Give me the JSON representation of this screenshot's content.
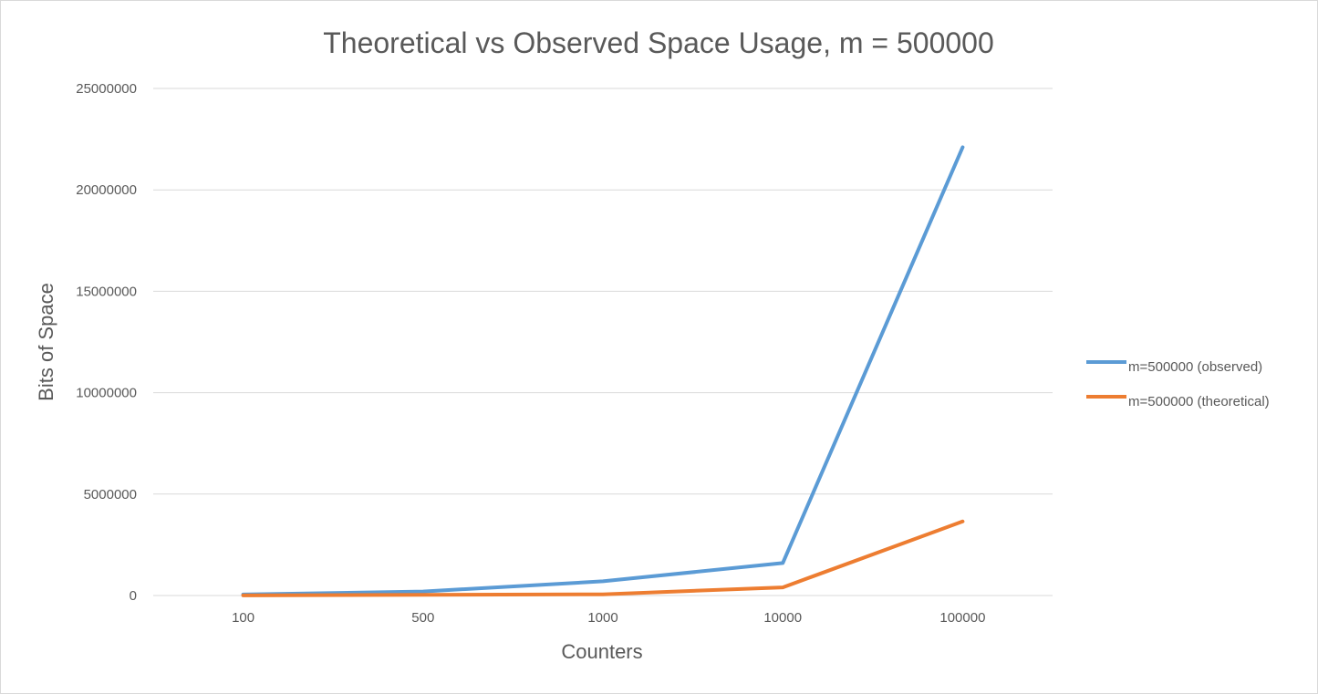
{
  "chart_data": {
    "type": "line",
    "title": "Theoretical vs Observed Space Usage, m = 500000",
    "xlabel": "Counters",
    "ylabel": "Bits of Space",
    "categories": [
      "100",
      "500",
      "1000",
      "10000",
      "100000"
    ],
    "ylim": [
      0,
      25000000
    ],
    "yticks": [
      "0",
      "5000000",
      "10000000",
      "15000000",
      "20000000",
      "25000000"
    ],
    "grid": true,
    "legend_position": "right",
    "series": [
      {
        "name": "m=500000 (observed)",
        "color": "#5b9bd5",
        "values": [
          50000,
          200000,
          700000,
          1600000,
          22100000
        ]
      },
      {
        "name": "m=500000 (theoretical)",
        "color": "#ed7d31",
        "values": [
          5000,
          30000,
          60000,
          400000,
          3650000
        ]
      }
    ]
  }
}
